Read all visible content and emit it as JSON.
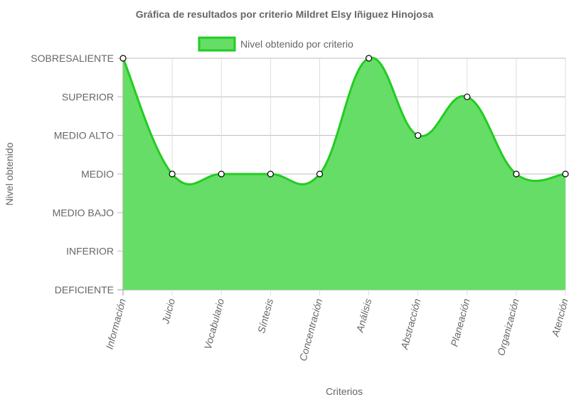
{
  "chart_data": {
    "type": "area",
    "title": "Gráfica de resultados por criterio Mildret Elsy Iñiguez Hinojosa",
    "xlabel": "Criterios",
    "ylabel": "Nivel obtenido",
    "levels": [
      "DEFICIENTE",
      "INFERIOR",
      "MEDIO BAJO",
      "MEDIO",
      "MEDIO ALTO",
      "SUPERIOR",
      "SOBRESALIENTE"
    ],
    "categories": [
      "Información",
      "Juicio",
      "Vocabulario",
      "Síntesis",
      "Concentración",
      "Análisis",
      "Abstracción",
      "Planeación",
      "Organización",
      "Atención"
    ],
    "series": [
      {
        "name": "Nivel obtenido por criterio",
        "values": [
          "SOBRESALIENTE",
          "MEDIO",
          "MEDIO",
          "MEDIO",
          "MEDIO",
          "SOBRESALIENTE",
          "MEDIO ALTO",
          "SUPERIOR",
          "MEDIO",
          "MEDIO"
        ]
      }
    ],
    "legend_position": "top",
    "grid": true,
    "colors": {
      "fill": "#66dd66",
      "line": "#22cc22",
      "grid": "#dddddd",
      "text": "#666666"
    }
  }
}
